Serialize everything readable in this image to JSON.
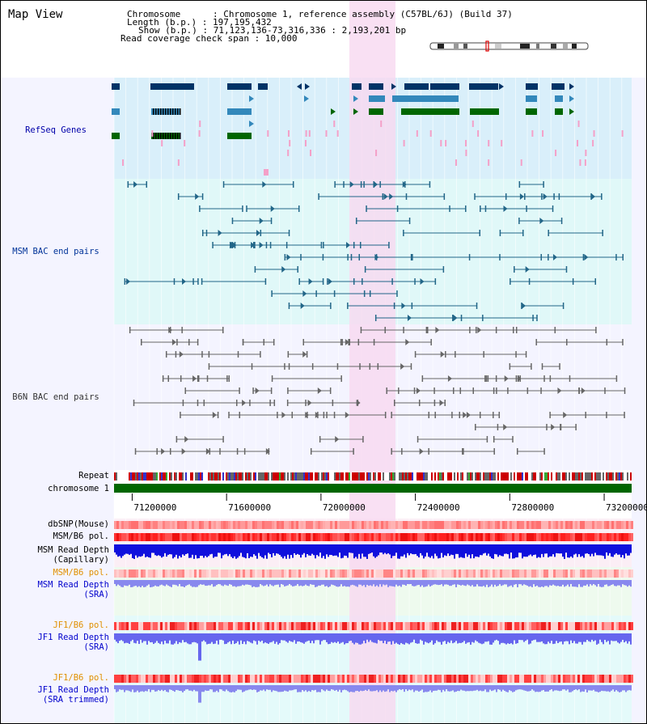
{
  "page": {
    "title": "Map View"
  },
  "header": {
    "chromosome": "Chromosome      : Chromosome 1, reference assembly (C57BL/6J) (Build 37)",
    "length": "Length (b.p.) : 197,195,432",
    "show": "Show (b.p.) : 71,123,136-73,316,336 : 2,193,201 bp",
    "coverage": "Read coverage check span : 10,000"
  },
  "tracks": {
    "refseq": "RefSeq Genes",
    "msm_bac": "MSM BAC end pairs",
    "b6n_bac": "B6N BAC end pairs",
    "repeat": "Repeat",
    "chromosome": "chromosome 1",
    "dbsnp": "dbSNP(Mouse)",
    "msm_pol": "MSM/B6 pol.",
    "msm_depth_cap_1": "MSM Read Depth",
    "msm_depth_cap_2": "(Capillary)",
    "msm_pol_sra": "MSM/B6 pol.",
    "msm_depth_sra_1": "MSM Read Depth",
    "msm_depth_sra_2": "(SRA)",
    "jf1_pol_1": "JF1/B6 pol.",
    "jf1_depth_1": "JF1 Read Depth",
    "jf1_depth_1b": "(SRA)",
    "jf1_pol_2": "JF1/B6 pol.",
    "jf1_depth_2": "JF1 Read Depth",
    "jf1_depth_2b": "(SRA trimmed)"
  },
  "axis": {
    "ticks": [
      "71200000",
      "71600000",
      "72000000",
      "72400000",
      "72800000",
      "73200000"
    ],
    "tick_values": [
      71200000,
      71600000,
      72000000,
      72400000,
      72800000,
      73200000
    ]
  },
  "colors": {
    "highlight": "#f8d8f0",
    "refseq_bg": "#d9effa",
    "msm_bg": "#e0f8f8",
    "b6n_bg": "#f4f4ff",
    "chrom_bar": "#006600",
    "gene_dark": "#003366",
    "gene_mid": "#3388bb",
    "gene_green": "#006600",
    "msm_bac": "#226688",
    "b6n_bac": "#666666"
  }
}
